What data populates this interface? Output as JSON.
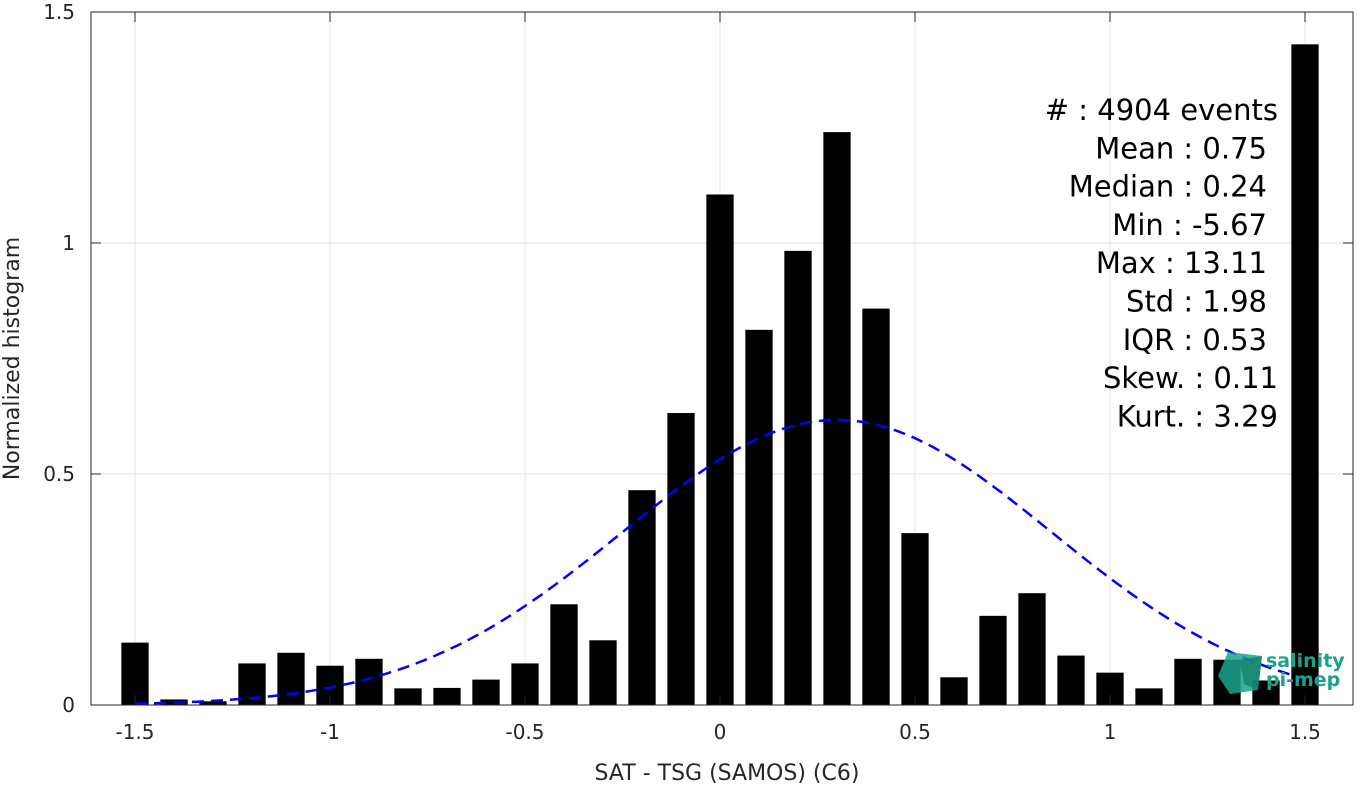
{
  "chart_data": {
    "type": "bar",
    "title": "",
    "xlabel": "SAT - TSG (SAMOS) (C6)",
    "ylabel": "Normalized histogram",
    "xlim": [
      -1.6,
      1.6
    ],
    "ylim": [
      0,
      1.5
    ],
    "x_ticks": [
      -1.5,
      -1,
      -0.5,
      0,
      0.5,
      1,
      1.5
    ],
    "x_tick_labels": [
      "-1.5",
      "-1",
      "-0.5",
      "0",
      "0.5",
      "1",
      "1.5"
    ],
    "y_ticks": [
      0,
      0.5,
      1,
      1.5
    ],
    "y_tick_labels": [
      "0",
      "0.5",
      "1",
      "1.5"
    ],
    "grid": true,
    "bar_color": "#000000",
    "bins": [
      -1.5,
      -1.4,
      -1.3,
      -1.2,
      -1.1,
      -1.0,
      -0.9,
      -0.8,
      -0.7,
      -0.6,
      -0.5,
      -0.4,
      -0.3,
      -0.2,
      -0.1,
      0.0,
      0.1,
      0.2,
      0.3,
      0.4,
      0.5,
      0.6,
      0.7,
      0.8,
      0.9,
      1.0,
      1.1,
      1.2,
      1.3,
      1.4,
      1.5
    ],
    "values": [
      0.135,
      0.012,
      0.008,
      0.09,
      0.113,
      0.085,
      0.1,
      0.036,
      0.037,
      0.055,
      0.09,
      0.218,
      0.14,
      0.465,
      0.632,
      1.105,
      0.812,
      0.983,
      1.24,
      0.858,
      0.372,
      0.06,
      0.193,
      0.242,
      0.107,
      0.07,
      0.036,
      0.1,
      0.098,
      0.053,
      1.43
    ],
    "fit_curve": {
      "type": "gaussian",
      "color": "#0000ff",
      "style": "dashed",
      "peak_x": 0.3,
      "peak_y": 0.617,
      "x_range": [
        -1.5,
        1.5
      ]
    },
    "annotations": [
      "#  : 4904 events",
      "Mean : 0.75",
      "Median : 0.24",
      "Min : -5.67",
      "Max : 13.11",
      "Std : 1.98",
      "IQR : 0.53",
      "Skew. : 0.11",
      "Kurt. : 3.29"
    ]
  },
  "logo": {
    "line1": "salinity",
    "line2": "pi-mep",
    "color": "#1aa389"
  }
}
